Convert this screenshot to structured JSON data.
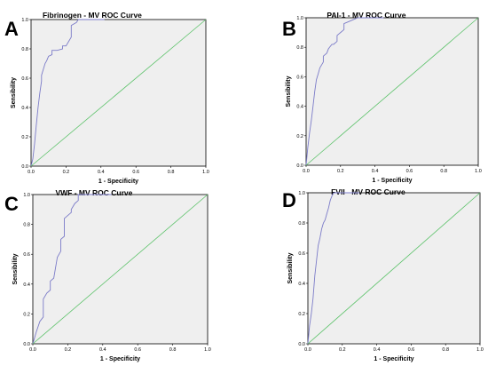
{
  "colors": {
    "background": "#ffffff",
    "plot_bg": "#efefef",
    "roc": "#7b7bc8",
    "reference": "#5cc26a",
    "frame": "#000000"
  },
  "chart_data": [
    {
      "panel": "A",
      "type": "line",
      "title": "Fibrinogen - MV ROC Curve",
      "xlabel": "1 - Specificity",
      "ylabel": "Sensibility",
      "xlim": [
        0,
        1
      ],
      "ylim": [
        0,
        1
      ],
      "xticks": [
        "0.0",
        "0.2",
        "0.4",
        "0.6",
        "0.8",
        "1.0"
      ],
      "yticks": [
        "0.0",
        "0.2",
        "0.4",
        "0.6",
        "0.8",
        "1.0"
      ],
      "grid": false,
      "series": [
        {
          "role": "roc",
          "x": [
            0,
            0.01,
            0.02,
            0.03,
            0.04,
            0.05,
            0.06,
            0.06,
            0.07,
            0.08,
            0.09,
            0.1,
            0.12,
            0.12,
            0.15,
            0.18,
            0.18,
            0.2,
            0.22,
            0.23,
            0.23,
            0.26,
            0.27,
            0.3,
            0.36,
            0.42
          ],
          "y": [
            0,
            0.05,
            0.15,
            0.28,
            0.4,
            0.5,
            0.58,
            0.62,
            0.66,
            0.7,
            0.72,
            0.75,
            0.76,
            0.79,
            0.79,
            0.8,
            0.82,
            0.82,
            0.86,
            0.88,
            0.96,
            0.98,
            1.0,
            1.0,
            1.0,
            1.0
          ]
        },
        {
          "role": "reference",
          "x": [
            0,
            1
          ],
          "y": [
            0,
            1
          ]
        }
      ]
    },
    {
      "panel": "B",
      "type": "line",
      "title": "PAI-1 - MV ROC Curve",
      "xlabel": "1 - Specificity",
      "ylabel": "Sensibility",
      "xlim": [
        0,
        1
      ],
      "ylim": [
        0,
        1
      ],
      "xticks": [
        "0.0",
        "0.2",
        "0.4",
        "0.6",
        "0.8",
        "1.0"
      ],
      "yticks": [
        "0.0",
        "0.2",
        "0.4",
        "0.6",
        "0.8",
        "1.0"
      ],
      "grid": false,
      "series": [
        {
          "role": "roc",
          "x": [
            0,
            0.01,
            0.02,
            0.03,
            0.04,
            0.05,
            0.06,
            0.07,
            0.08,
            0.1,
            0.1,
            0.12,
            0.13,
            0.15,
            0.16,
            0.18,
            0.18,
            0.2,
            0.22,
            0.22,
            0.26,
            0.3,
            0.36,
            0.45
          ],
          "y": [
            0,
            0.12,
            0.22,
            0.3,
            0.4,
            0.5,
            0.58,
            0.62,
            0.66,
            0.7,
            0.74,
            0.76,
            0.79,
            0.82,
            0.82,
            0.84,
            0.88,
            0.9,
            0.92,
            0.96,
            0.98,
            1.0,
            1.0,
            1.0
          ]
        },
        {
          "role": "reference",
          "x": [
            0,
            1
          ],
          "y": [
            0,
            1
          ]
        }
      ]
    },
    {
      "panel": "C",
      "type": "line",
      "title": "VWF - MV ROC Curve",
      "xlabel": "1 - Specificity",
      "ylabel": "Sensibility",
      "xlim": [
        0,
        1
      ],
      "ylim": [
        0,
        1
      ],
      "xticks": [
        "0.0",
        "0.2",
        "0.4",
        "0.6",
        "0.8",
        "1.0"
      ],
      "yticks": [
        "0.0",
        "0.2",
        "0.4",
        "0.6",
        "0.8",
        "1.0"
      ],
      "grid": false,
      "series": [
        {
          "role": "roc",
          "x": [
            0,
            0.02,
            0.04,
            0.06,
            0.06,
            0.08,
            0.1,
            0.1,
            0.12,
            0.14,
            0.16,
            0.16,
            0.18,
            0.18,
            0.22,
            0.22,
            0.24,
            0.26,
            0.26,
            0.3,
            0.35,
            0.45
          ],
          "y": [
            0,
            0.08,
            0.15,
            0.18,
            0.3,
            0.34,
            0.36,
            0.42,
            0.44,
            0.58,
            0.62,
            0.7,
            0.72,
            0.84,
            0.88,
            0.9,
            0.94,
            0.96,
            1.0,
            1.0,
            1.0,
            1.0
          ]
        },
        {
          "role": "reference",
          "x": [
            0,
            1
          ],
          "y": [
            0,
            1
          ]
        }
      ]
    },
    {
      "panel": "D",
      "type": "line",
      "title": "FVII - MV ROC Curve",
      "xlabel": "1 - Specificity",
      "ylabel": "Sensibility",
      "xlim": [
        0,
        1
      ],
      "ylim": [
        0,
        1
      ],
      "xticks": [
        "0.0",
        "0.2",
        "0.4",
        "0.6",
        "0.8",
        "1.0"
      ],
      "yticks": [
        "0.0",
        "0.2",
        "0.4",
        "0.6",
        "0.8",
        "1.0"
      ],
      "grid": false,
      "series": [
        {
          "role": "roc",
          "x": [
            0,
            0.01,
            0.02,
            0.03,
            0.04,
            0.05,
            0.06,
            0.07,
            0.08,
            0.09,
            0.1,
            0.11,
            0.12,
            0.13,
            0.14,
            0.15,
            0.2,
            0.3
          ],
          "y": [
            0,
            0.12,
            0.2,
            0.3,
            0.45,
            0.55,
            0.65,
            0.7,
            0.76,
            0.8,
            0.82,
            0.86,
            0.9,
            0.95,
            0.98,
            1.0,
            1.0,
            1.0
          ]
        },
        {
          "role": "reference",
          "x": [
            0,
            1
          ],
          "y": [
            0,
            1
          ]
        }
      ]
    }
  ]
}
